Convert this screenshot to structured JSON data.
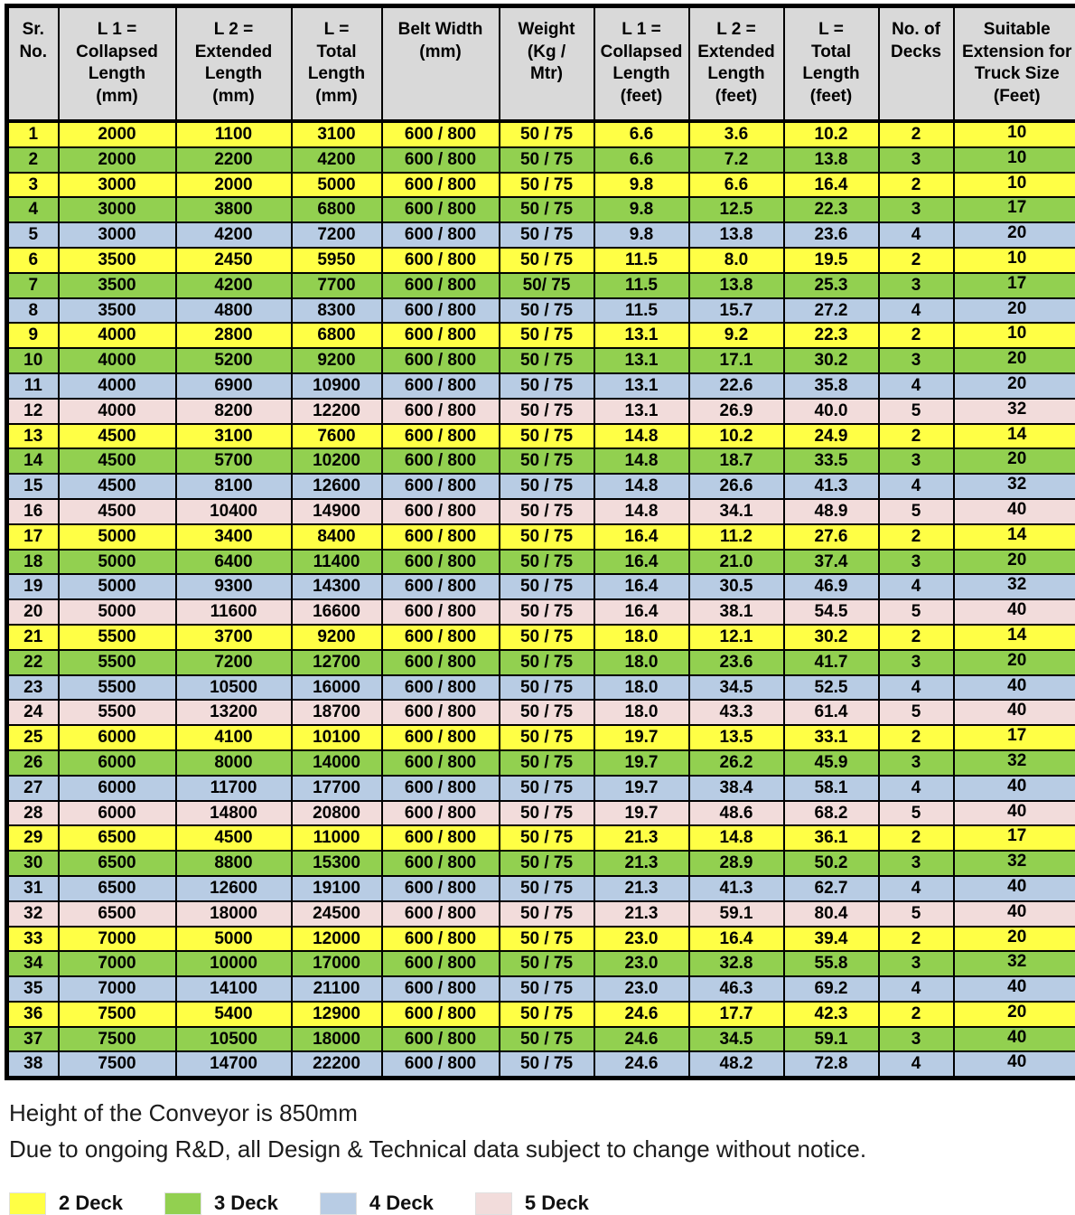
{
  "table": {
    "headers": [
      "Sr.\nNo.",
      "L 1 =\nCollapsed\nLength\n(mm)",
      "L 2 =\nExtended\nLength\n(mm)",
      "L =\nTotal\nLength\n(mm)",
      "Belt Width\n(mm)",
      "Weight\n(Kg /\nMtr)",
      "L 1 =\nCollapsed\nLength\n(feet)",
      "L 2 =\nExtended\nLength\n(feet)",
      "L =\nTotal\nLength\n(feet)",
      "No. of\nDecks",
      "Suitable\nExtension for\nTruck Size\n(Feet)"
    ],
    "rows": [
      [
        "1",
        "2000",
        "1100",
        "3100",
        "600 / 800",
        "50 / 75",
        "6.6",
        "3.6",
        "10.2",
        "2",
        "10"
      ],
      [
        "2",
        "2000",
        "2200",
        "4200",
        "600 / 800",
        "50 / 75",
        "6.6",
        "7.2",
        "13.8",
        "3",
        "10"
      ],
      [
        "3",
        "3000",
        "2000",
        "5000",
        "600 / 800",
        "50 / 75",
        "9.8",
        "6.6",
        "16.4",
        "2",
        "10"
      ],
      [
        "4",
        "3000",
        "3800",
        "6800",
        "600 / 800",
        "50 / 75",
        "9.8",
        "12.5",
        "22.3",
        "3",
        "17"
      ],
      [
        "5",
        "3000",
        "4200",
        "7200",
        "600 / 800",
        "50 / 75",
        "9.8",
        "13.8",
        "23.6",
        "4",
        "20"
      ],
      [
        "6",
        "3500",
        "2450",
        "5950",
        "600 / 800",
        "50 / 75",
        "11.5",
        "8.0",
        "19.5",
        "2",
        "10"
      ],
      [
        "7",
        "3500",
        "4200",
        "7700",
        "600 / 800",
        "50/ 75",
        "11.5",
        "13.8",
        "25.3",
        "3",
        "17"
      ],
      [
        "8",
        "3500",
        "4800",
        "8300",
        "600 / 800",
        "50 / 75",
        "11.5",
        "15.7",
        "27.2",
        "4",
        "20"
      ],
      [
        "9",
        "4000",
        "2800",
        "6800",
        "600 / 800",
        "50 / 75",
        "13.1",
        "9.2",
        "22.3",
        "2",
        "10"
      ],
      [
        "10",
        "4000",
        "5200",
        "9200",
        "600 / 800",
        "50 / 75",
        "13.1",
        "17.1",
        "30.2",
        "3",
        "20"
      ],
      [
        "11",
        "4000",
        "6900",
        "10900",
        "600 / 800",
        "50 / 75",
        "13.1",
        "22.6",
        "35.8",
        "4",
        "20"
      ],
      [
        "12",
        "4000",
        "8200",
        "12200",
        "600 / 800",
        "50 / 75",
        "13.1",
        "26.9",
        "40.0",
        "5",
        "32"
      ],
      [
        "13",
        "4500",
        "3100",
        "7600",
        "600 / 800",
        "50 / 75",
        "14.8",
        "10.2",
        "24.9",
        "2",
        "14"
      ],
      [
        "14",
        "4500",
        "5700",
        "10200",
        "600 / 800",
        "50 / 75",
        "14.8",
        "18.7",
        "33.5",
        "3",
        "20"
      ],
      [
        "15",
        "4500",
        "8100",
        "12600",
        "600 / 800",
        "50 / 75",
        "14.8",
        "26.6",
        "41.3",
        "4",
        "32"
      ],
      [
        "16",
        "4500",
        "10400",
        "14900",
        "600 / 800",
        "50 / 75",
        "14.8",
        "34.1",
        "48.9",
        "5",
        "40"
      ],
      [
        "17",
        "5000",
        "3400",
        "8400",
        "600 / 800",
        "50 / 75",
        "16.4",
        "11.2",
        "27.6",
        "2",
        "14"
      ],
      [
        "18",
        "5000",
        "6400",
        "11400",
        "600 / 800",
        "50 / 75",
        "16.4",
        "21.0",
        "37.4",
        "3",
        "20"
      ],
      [
        "19",
        "5000",
        "9300",
        "14300",
        "600 / 800",
        "50 / 75",
        "16.4",
        "30.5",
        "46.9",
        "4",
        "32"
      ],
      [
        "20",
        "5000",
        "11600",
        "16600",
        "600 / 800",
        "50 / 75",
        "16.4",
        "38.1",
        "54.5",
        "5",
        "40"
      ],
      [
        "21",
        "5500",
        "3700",
        "9200",
        "600 / 800",
        "50 / 75",
        "18.0",
        "12.1",
        "30.2",
        "2",
        "14"
      ],
      [
        "22",
        "5500",
        "7200",
        "12700",
        "600 / 800",
        "50 / 75",
        "18.0",
        "23.6",
        "41.7",
        "3",
        "20"
      ],
      [
        "23",
        "5500",
        "10500",
        "16000",
        "600 / 800",
        "50 / 75",
        "18.0",
        "34.5",
        "52.5",
        "4",
        "40"
      ],
      [
        "24",
        "5500",
        "13200",
        "18700",
        "600 / 800",
        "50 / 75",
        "18.0",
        "43.3",
        "61.4",
        "5",
        "40"
      ],
      [
        "25",
        "6000",
        "4100",
        "10100",
        "600 / 800",
        "50 / 75",
        "19.7",
        "13.5",
        "33.1",
        "2",
        "17"
      ],
      [
        "26",
        "6000",
        "8000",
        "14000",
        "600 / 800",
        "50 / 75",
        "19.7",
        "26.2",
        "45.9",
        "3",
        "32"
      ],
      [
        "27",
        "6000",
        "11700",
        "17700",
        "600 / 800",
        "50 / 75",
        "19.7",
        "38.4",
        "58.1",
        "4",
        "40"
      ],
      [
        "28",
        "6000",
        "14800",
        "20800",
        "600 / 800",
        "50 / 75",
        "19.7",
        "48.6",
        "68.2",
        "5",
        "40"
      ],
      [
        "29",
        "6500",
        "4500",
        "11000",
        "600 / 800",
        "50 / 75",
        "21.3",
        "14.8",
        "36.1",
        "2",
        "17"
      ],
      [
        "30",
        "6500",
        "8800",
        "15300",
        "600 / 800",
        "50 / 75",
        "21.3",
        "28.9",
        "50.2",
        "3",
        "32"
      ],
      [
        "31",
        "6500",
        "12600",
        "19100",
        "600 / 800",
        "50 / 75",
        "21.3",
        "41.3",
        "62.7",
        "4",
        "40"
      ],
      [
        "32",
        "6500",
        "18000",
        "24500",
        "600 / 800",
        "50 / 75",
        "21.3",
        "59.1",
        "80.4",
        "5",
        "40"
      ],
      [
        "33",
        "7000",
        "5000",
        "12000",
        "600 / 800",
        "50 / 75",
        "23.0",
        "16.4",
        "39.4",
        "2",
        "20"
      ],
      [
        "34",
        "7000",
        "10000",
        "17000",
        "600 / 800",
        "50 / 75",
        "23.0",
        "32.8",
        "55.8",
        "3",
        "32"
      ],
      [
        "35",
        "7000",
        "14100",
        "21100",
        "600 / 800",
        "50 / 75",
        "23.0",
        "46.3",
        "69.2",
        "4",
        "40"
      ],
      [
        "36",
        "7500",
        "5400",
        "12900",
        "600 / 800",
        "50 / 75",
        "24.6",
        "17.7",
        "42.3",
        "2",
        "20"
      ],
      [
        "37",
        "7500",
        "10500",
        "18000",
        "600 / 800",
        "50 / 75",
        "24.6",
        "34.5",
        "59.1",
        "3",
        "40"
      ],
      [
        "38",
        "7500",
        "14700",
        "22200",
        "600 / 800",
        "50 / 75",
        "24.6",
        "48.2",
        "72.8",
        "4",
        "40"
      ]
    ]
  },
  "header_bg": "#d9d9d9",
  "deck_colors": {
    "2": "#ffff45",
    "3": "#92d050",
    "4": "#b8cce4",
    "5": "#f2dcdb"
  },
  "notes": [
    "Height of the Conveyor is 850mm",
    "Due to ongoing R&D, all Design & Technical data subject to change without notice."
  ],
  "legend": {
    "items": [
      {
        "label": "2 Deck",
        "color": "#ffff45"
      },
      {
        "label": "3 Deck",
        "color": "#92d050"
      },
      {
        "label": "4 Deck",
        "color": "#b8cce4"
      },
      {
        "label": "5 Deck",
        "color": "#f2dcdb"
      }
    ]
  }
}
